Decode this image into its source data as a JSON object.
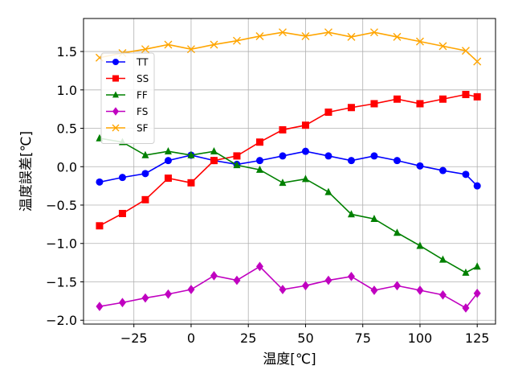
{
  "chart_data": {
    "type": "line",
    "xlabel": "温度[℃]",
    "ylabel": "温度誤差[℃]",
    "xlim": [
      -47,
      133
    ],
    "ylim": [
      -2.05,
      1.93
    ],
    "grid": true,
    "legend_position": "upper-left",
    "x_ticks": [
      -25,
      0,
      25,
      50,
      75,
      100,
      125
    ],
    "x_tick_labels": [
      "−25",
      "0",
      "25",
      "50",
      "75",
      "100",
      "125"
    ],
    "y_ticks": [
      -2.0,
      -1.5,
      -1.0,
      -0.5,
      0.0,
      0.5,
      1.0,
      1.5
    ],
    "y_tick_labels": [
      "−2.0",
      "−1.5",
      "−1.0",
      "−0.5",
      "0.0",
      "0.5",
      "1.0",
      "1.5"
    ],
    "x": [
      -40,
      -30,
      -20,
      -10,
      0,
      10,
      20,
      30,
      40,
      50,
      60,
      70,
      80,
      90,
      100,
      110,
      120,
      125
    ],
    "series": [
      {
        "name": "TT",
        "color": "#0000ff",
        "marker": "circle",
        "values": [
          -0.2,
          -0.14,
          -0.09,
          0.08,
          0.15,
          0.08,
          0.03,
          0.08,
          0.14,
          0.2,
          0.14,
          0.08,
          0.14,
          0.08,
          0.01,
          -0.05,
          -0.1,
          -0.25
        ]
      },
      {
        "name": "SS",
        "color": "#ff0000",
        "marker": "square",
        "values": [
          -0.77,
          -0.61,
          -0.43,
          -0.15,
          -0.21,
          0.08,
          0.14,
          0.32,
          0.48,
          0.54,
          0.71,
          0.77,
          0.82,
          0.88,
          0.82,
          0.88,
          0.94,
          0.91
        ]
      },
      {
        "name": "FF",
        "color": "#008000",
        "marker": "triangle",
        "values": [
          0.37,
          0.32,
          0.15,
          0.2,
          0.15,
          0.2,
          0.02,
          -0.04,
          -0.21,
          -0.16,
          -0.33,
          -0.62,
          -0.68,
          -0.86,
          -1.03,
          -1.21,
          -1.38,
          -1.3
        ]
      },
      {
        "name": "FS",
        "color": "#c000c0",
        "marker": "diamond",
        "values": [
          -1.82,
          -1.77,
          -1.71,
          -1.66,
          -1.6,
          -1.42,
          -1.48,
          -1.3,
          -1.6,
          -1.55,
          -1.48,
          -1.43,
          -1.61,
          -1.55,
          -1.61,
          -1.67,
          -1.84,
          -1.65
        ]
      },
      {
        "name": "SF",
        "color": "#ffa500",
        "marker": "x",
        "values": [
          1.42,
          1.48,
          1.53,
          1.59,
          1.53,
          1.59,
          1.64,
          1.7,
          1.75,
          1.7,
          1.75,
          1.69,
          1.75,
          1.69,
          1.63,
          1.57,
          1.51,
          1.37
        ]
      }
    ]
  }
}
